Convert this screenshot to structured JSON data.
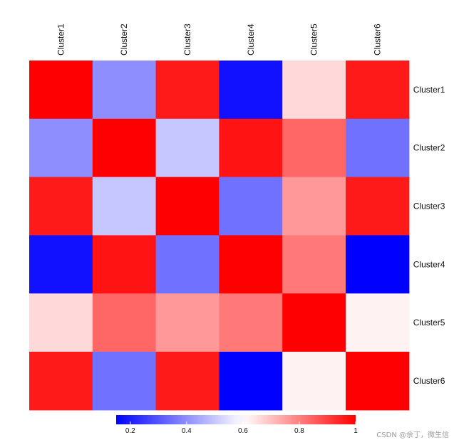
{
  "chart_data": {
    "type": "heatmap",
    "rows": [
      "Cluster1",
      "Cluster2",
      "Cluster3",
      "Cluster4",
      "Cluster5",
      "Cluster6"
    ],
    "columns": [
      "Cluster1",
      "Cluster2",
      "Cluster3",
      "Cluster4",
      "Cluster5",
      "Cluster6"
    ],
    "values": [
      [
        1.0,
        0.4,
        0.96,
        0.18,
        0.66,
        0.96
      ],
      [
        0.4,
        1.0,
        0.5,
        0.97,
        0.84,
        0.35
      ],
      [
        0.96,
        0.5,
        1.0,
        0.35,
        0.76,
        0.96
      ],
      [
        0.18,
        0.97,
        0.35,
        1.0,
        0.81,
        0.15
      ],
      [
        0.66,
        0.84,
        0.76,
        0.81,
        1.0,
        0.62
      ],
      [
        0.96,
        0.35,
        0.96,
        0.15,
        0.62,
        1.0
      ]
    ],
    "colorbar": {
      "range": [
        0.15,
        1.0
      ],
      "ticks": [
        "0.2",
        "0.4",
        "0.6",
        "0.8",
        "1"
      ],
      "tick_values": [
        0.2,
        0.4,
        0.6,
        0.8,
        1.0
      ],
      "midpoint": 0.6,
      "low_color": "#0000ff",
      "mid_color": "#ffffff",
      "high_color": "#ff0000",
      "orientation": "horizontal"
    },
    "column_label_position": "top",
    "row_label_position": "right"
  },
  "watermark": "CSDN @余丁，微生信"
}
